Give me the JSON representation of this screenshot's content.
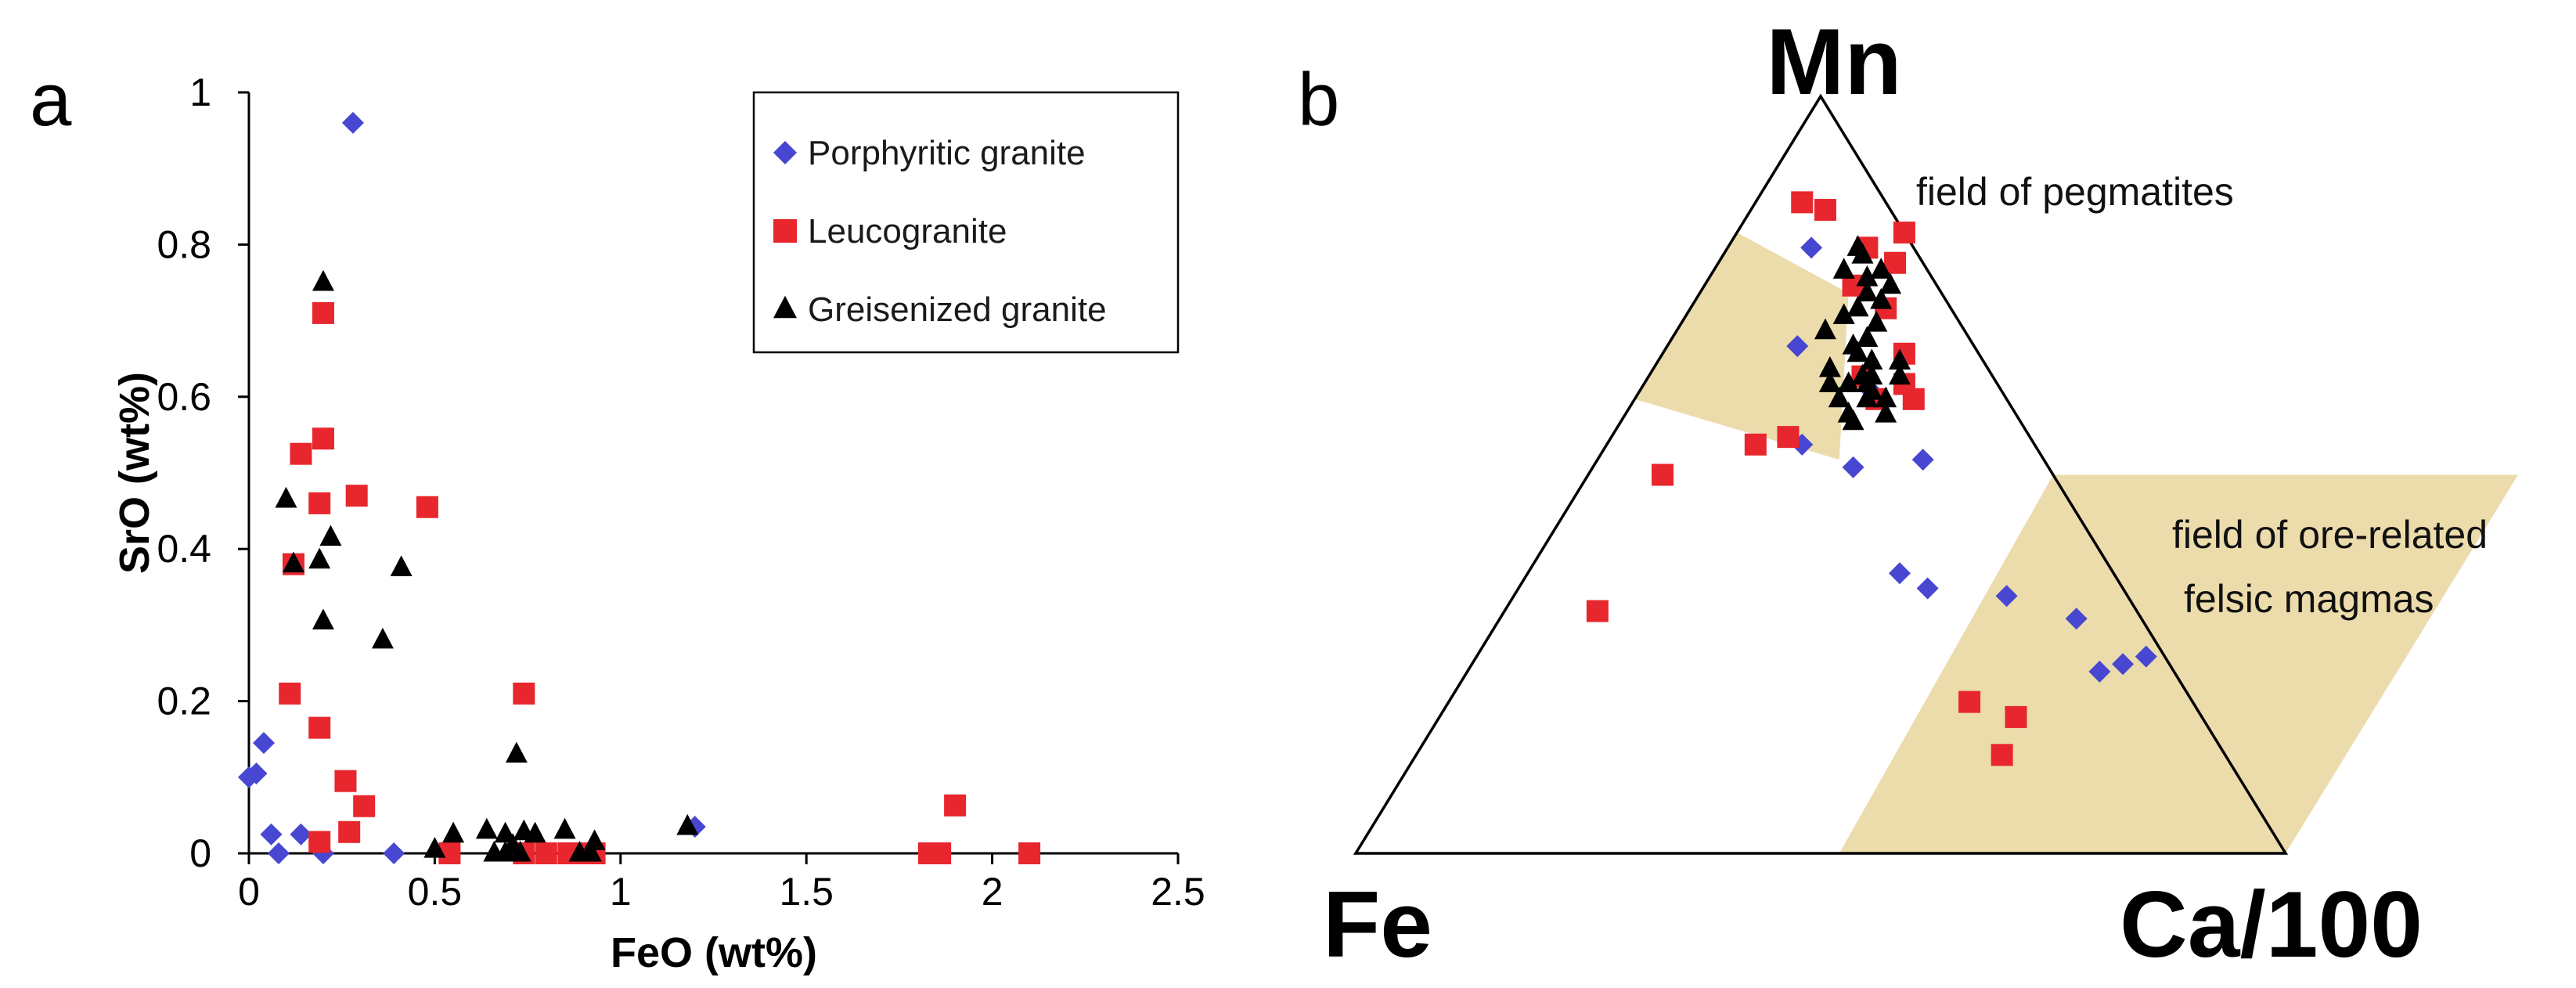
{
  "colors": {
    "porphyritic": "#4747d1",
    "leucogranite": "#e8262d",
    "greisenized": "#000000",
    "field_fill": "#ecdcac",
    "axis": "#000000"
  },
  "chart_data": [
    {
      "type": "scatter",
      "panel_label": "a",
      "xlabel": "FeO (wt%)",
      "ylabel": "SrO (wt%)",
      "xlim": [
        0,
        2.5
      ],
      "ylim": [
        0,
        1
      ],
      "xticks": [
        {
          "value": 0,
          "label": "0"
        },
        {
          "value": 0.5,
          "label": "0.5"
        },
        {
          "value": 1,
          "label": "1"
        },
        {
          "value": 1.5,
          "label": "1.5"
        },
        {
          "value": 2,
          "label": "2"
        },
        {
          "value": 2.5,
          "label": "2.5"
        }
      ],
      "yticks": [
        {
          "value": 0,
          "label": "0"
        },
        {
          "value": 0.2,
          "label": "0.2"
        },
        {
          "value": 0.4,
          "label": "0.4"
        },
        {
          "value": 0.6,
          "label": "0.6"
        },
        {
          "value": 0.8,
          "label": "0.8"
        },
        {
          "value": 1,
          "label": "1"
        }
      ],
      "grid": false,
      "legend_position": "top-right",
      "series": [
        {
          "name": "Porphyritic granite",
          "marker": "diamond",
          "points": [
            [
              0.28,
              0.96
            ],
            [
              0.0,
              0.1
            ],
            [
              0.02,
              0.105
            ],
            [
              0.04,
              0.145
            ],
            [
              0.06,
              0.025
            ],
            [
              0.08,
              0.0
            ],
            [
              0.14,
              0.025
            ],
            [
              0.2,
              0.0
            ],
            [
              0.39,
              0.0
            ],
            [
              0.72,
              0.0
            ],
            [
              0.9,
              0.0
            ],
            [
              1.2,
              0.035
            ]
          ]
        },
        {
          "name": "Leucogranite",
          "marker": "square",
          "points": [
            [
              0.2,
              0.71
            ],
            [
              0.2,
              0.545
            ],
            [
              0.14,
              0.525
            ],
            [
              0.19,
              0.46
            ],
            [
              0.29,
              0.47
            ],
            [
              0.48,
              0.455
            ],
            [
              0.12,
              0.38
            ],
            [
              0.11,
              0.21
            ],
            [
              0.19,
              0.165
            ],
            [
              0.26,
              0.095
            ],
            [
              0.31,
              0.062
            ],
            [
              0.27,
              0.028
            ],
            [
              0.19,
              0.015
            ],
            [
              0.54,
              0.0
            ],
            [
              0.74,
              0.21
            ],
            [
              0.74,
              0.0
            ],
            [
              0.8,
              0.0
            ],
            [
              0.86,
              0.0
            ],
            [
              0.91,
              0.0
            ],
            [
              0.93,
              0.0
            ],
            [
              1.83,
              0.0
            ],
            [
              1.86,
              0.0
            ],
            [
              1.9,
              0.063
            ],
            [
              2.1,
              0.0
            ]
          ]
        },
        {
          "name": "Greisenized granite",
          "marker": "triangle",
          "points": [
            [
              0.2,
              0.75
            ],
            [
              0.1,
              0.465
            ],
            [
              0.22,
              0.415
            ],
            [
              0.12,
              0.38
            ],
            [
              0.19,
              0.385
            ],
            [
              0.41,
              0.375
            ],
            [
              0.2,
              0.305
            ],
            [
              0.36,
              0.28
            ],
            [
              0.72,
              0.13
            ],
            [
              0.85,
              0.03
            ],
            [
              0.93,
              0.015
            ],
            [
              0.64,
              0.03
            ],
            [
              0.69,
              0.025
            ],
            [
              0.74,
              0.028
            ],
            [
              0.5,
              0.005
            ],
            [
              0.55,
              0.025
            ],
            [
              0.66,
              0.0
            ],
            [
              0.69,
              0.0
            ],
            [
              0.71,
              0.01
            ],
            [
              0.73,
              0.0
            ],
            [
              0.77,
              0.025
            ],
            [
              0.89,
              0.0
            ],
            [
              0.92,
              0.0
            ],
            [
              1.18,
              0.035
            ]
          ]
        }
      ]
    },
    {
      "type": "scatter",
      "subtype": "ternary",
      "panel_label": "b",
      "vertex_labels": {
        "top": "Mn",
        "left": "Fe",
        "right": "Ca/100"
      },
      "fields": [
        {
          "label": "field of pegmatites",
          "polygon": [
            [
              0.74,
              0.16
            ],
            [
              0.52,
              0.26
            ],
            [
              0.6,
              0.0
            ],
            [
              0.82,
              0.0
            ]
          ]
        },
        {
          "label_lines": [
            "field of ore-related",
            "felsic magmas"
          ],
          "polygon": [
            [
              0.5,
              0.5
            ],
            [
              0.0,
              0.52
            ],
            [
              0.0,
              1.0
            ],
            [
              0.5,
              1.0
            ]
          ]
        }
      ],
      "series": [
        {
          "name": "Porphyritic granite",
          "marker": "diamond",
          "points": [
            [
              0.61,
              0.25
            ],
            [
              0.72,
              0.21
            ],
            [
              0.8,
              0.15
            ],
            [
              0.8,
              0.09
            ],
            [
              0.67,
              0.14
            ],
            [
              0.51,
              0.28
            ],
            [
              0.54,
              0.21
            ],
            [
              0.52,
              0.35
            ],
            [
              0.37,
              0.4
            ],
            [
              0.35,
              0.44
            ],
            [
              0.34,
              0.53
            ],
            [
              0.31,
              0.62
            ],
            [
              0.24,
              0.68
            ],
            [
              0.25,
              0.7
            ],
            [
              0.26,
              0.72
            ]
          ]
        },
        {
          "name": "Leucogranite",
          "marker": "square",
          "points": [
            [
              0.86,
              0.05
            ],
            [
              0.85,
              0.08
            ],
            [
              0.82,
              0.18
            ],
            [
              0.8,
              0.15
            ],
            [
              0.78,
              0.19
            ],
            [
              0.75,
              0.16
            ],
            [
              0.72,
              0.21
            ],
            [
              0.62,
              0.28
            ],
            [
              0.66,
              0.26
            ],
            [
              0.6,
              0.26
            ],
            [
              0.63,
              0.23
            ],
            [
              0.6,
              0.3
            ],
            [
              0.55,
              0.19
            ],
            [
              0.54,
              0.16
            ],
            [
              0.5,
              0.08
            ],
            [
              0.32,
              0.1
            ],
            [
              0.2,
              0.56
            ],
            [
              0.18,
              0.62
            ],
            [
              0.13,
              0.63
            ]
          ]
        },
        {
          "name": "Greisenized granite",
          "marker": "triangle",
          "points": [
            [
              0.8,
              0.14
            ],
            [
              0.79,
              0.15
            ],
            [
              0.77,
              0.14
            ],
            [
              0.77,
              0.18
            ],
            [
              0.76,
              0.17
            ],
            [
              0.75,
              0.2
            ],
            [
              0.74,
              0.18
            ],
            [
              0.73,
              0.2
            ],
            [
              0.72,
              0.18
            ],
            [
              0.71,
              0.17
            ],
            [
              0.69,
              0.16
            ],
            [
              0.7,
              0.21
            ],
            [
              0.67,
              0.2
            ],
            [
              0.66,
              0.21
            ],
            [
              0.65,
              0.26
            ],
            [
              0.68,
              0.21
            ],
            [
              0.62,
              0.24
            ],
            [
              0.65,
              0.23
            ],
            [
              0.63,
              0.27
            ],
            [
              0.63,
              0.24
            ],
            [
              0.62,
              0.2
            ],
            [
              0.6,
              0.22
            ],
            [
              0.62,
              0.22
            ],
            [
              0.64,
              0.19
            ],
            [
              0.58,
              0.24
            ],
            [
              0.6,
              0.25
            ],
            [
              0.57,
              0.25
            ],
            [
              0.58,
              0.28
            ],
            [
              0.6,
              0.27
            ],
            [
              0.61,
              0.25
            ],
            [
              0.63,
              0.23
            ]
          ]
        }
      ]
    }
  ]
}
